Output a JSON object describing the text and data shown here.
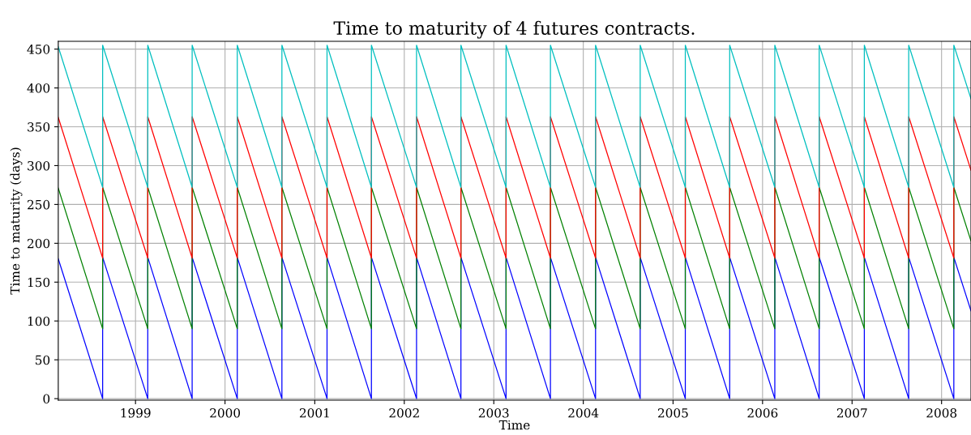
{
  "chart_data": {
    "type": "line",
    "title": "Time to maturity of 4 futures contracts.",
    "xlabel": "Time",
    "ylabel": "Time to maturity (days)",
    "x": [
      "1998-02-20",
      "1998-08-20",
      "1998-08-20",
      "1999-02-20",
      "1999-02-20",
      "1999-08-20",
      "1999-08-20",
      "2000-02-20",
      "2000-02-20",
      "2000-08-20",
      "2000-08-20",
      "2001-02-20",
      "2001-02-20",
      "2001-08-20",
      "2001-08-20",
      "2002-02-20",
      "2002-02-20",
      "2002-08-20",
      "2002-08-20",
      "2003-02-20",
      "2003-02-20",
      "2003-08-20",
      "2003-08-20",
      "2004-02-20",
      "2004-02-20",
      "2004-08-20",
      "2004-08-20",
      "2005-02-20",
      "2005-02-20",
      "2005-08-20",
      "2005-08-20",
      "2006-02-20",
      "2006-02-20",
      "2006-08-20",
      "2006-08-20",
      "2007-02-20",
      "2007-02-20",
      "2007-08-20",
      "2007-08-20",
      "2008-02-20",
      "2008-02-20",
      "2008-04-30"
    ],
    "series": [
      {
        "color": "#0000ff",
        "values": [
          180,
          0,
          182,
          0,
          182,
          0,
          182,
          0,
          182,
          0,
          182,
          0,
          182,
          0,
          182,
          0,
          182,
          0,
          182,
          0,
          182,
          0,
          182,
          0,
          182,
          0,
          182,
          0,
          182,
          0,
          182,
          0,
          182,
          0,
          182,
          0,
          182,
          0,
          182,
          0,
          182,
          113
        ]
      },
      {
        "color": "#008000",
        "values": [
          271,
          90,
          272,
          90,
          272,
          90,
          272,
          90,
          272,
          90,
          272,
          90,
          272,
          90,
          272,
          90,
          272,
          90,
          272,
          90,
          272,
          90,
          272,
          90,
          272,
          90,
          272,
          90,
          272,
          90,
          272,
          90,
          272,
          90,
          272,
          90,
          272,
          90,
          272,
          90,
          272,
          203
        ]
      },
      {
        "color": "#ff0000",
        "values": [
          362,
          181,
          363,
          181,
          363,
          181,
          363,
          181,
          363,
          181,
          363,
          181,
          363,
          181,
          363,
          181,
          363,
          181,
          363,
          181,
          363,
          181,
          363,
          181,
          363,
          181,
          363,
          181,
          363,
          181,
          363,
          181,
          363,
          181,
          363,
          181,
          363,
          181,
          363,
          181,
          363,
          294
        ]
      },
      {
        "color": "#00bfbf",
        "values": [
          453,
          272,
          455,
          272,
          455,
          272,
          455,
          272,
          455,
          272,
          455,
          272,
          455,
          272,
          455,
          272,
          455,
          272,
          455,
          272,
          455,
          272,
          455,
          272,
          455,
          272,
          455,
          272,
          455,
          272,
          455,
          272,
          455,
          272,
          455,
          272,
          455,
          272,
          455,
          272,
          455,
          386
        ]
      }
    ],
    "xlim": [
      "1998-02-20",
      "2008-04-30"
    ],
    "xticks": [
      {
        "value": "1999-01-01",
        "label": "1999"
      },
      {
        "value": "2000-01-01",
        "label": "2000"
      },
      {
        "value": "2001-01-01",
        "label": "2001"
      },
      {
        "value": "2002-01-01",
        "label": "2002"
      },
      {
        "value": "2003-01-01",
        "label": "2003"
      },
      {
        "value": "2004-01-01",
        "label": "2004"
      },
      {
        "value": "2005-01-01",
        "label": "2005"
      },
      {
        "value": "2006-01-01",
        "label": "2006"
      },
      {
        "value": "2007-01-01",
        "label": "2007"
      },
      {
        "value": "2008-01-01",
        "label": "2008"
      }
    ],
    "ylim": [
      -2,
      460
    ],
    "yticks": [
      0,
      50,
      100,
      150,
      200,
      250,
      300,
      350,
      400,
      450
    ],
    "grid": true
  }
}
